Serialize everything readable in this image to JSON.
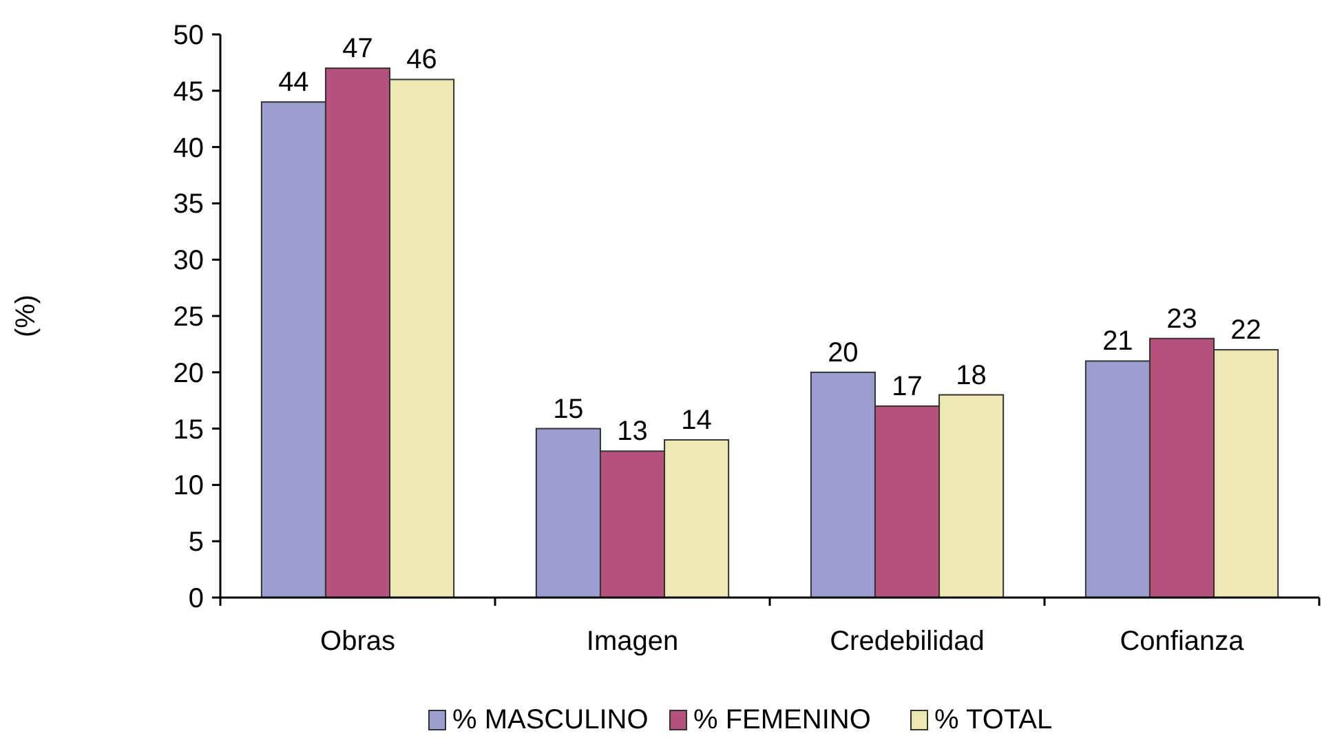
{
  "chart_data": {
    "type": "bar",
    "ylabel": "(%)",
    "categories": [
      "Obras",
      "Imagen",
      "Credebilidad",
      "Confianza"
    ],
    "series": [
      {
        "name": "% MASCULINO",
        "color": "#9c9ed0",
        "values": [
          44,
          15,
          20,
          21
        ]
      },
      {
        "name": "% FEMENINO",
        "color": "#b5517a",
        "values": [
          47,
          13,
          17,
          23
        ]
      },
      {
        "name": "% TOTAL",
        "color": "#ece8b4",
        "values": [
          46,
          14,
          18,
          22
        ]
      }
    ],
    "ylim": [
      0,
      50
    ],
    "yticks": [
      0,
      5,
      10,
      15,
      20,
      25,
      30,
      35,
      40,
      45,
      50
    ],
    "data_labels": true,
    "legend": "bottom",
    "grid": false
  }
}
